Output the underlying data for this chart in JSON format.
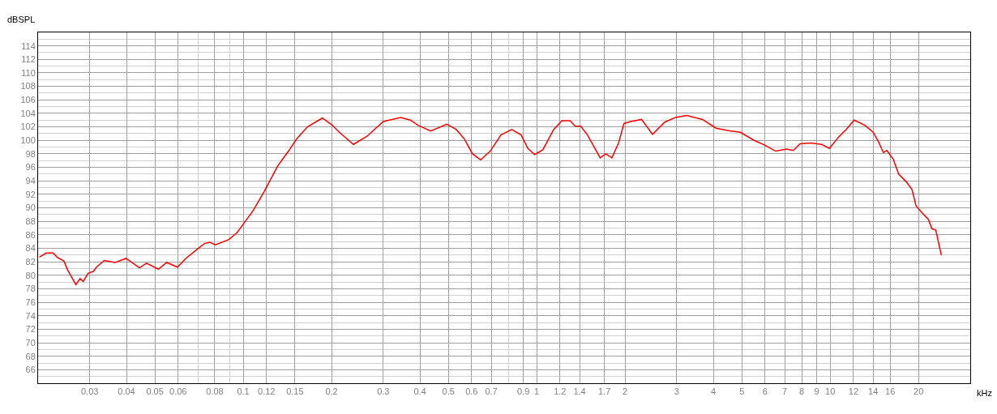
{
  "chart_data": {
    "type": "line",
    "xlabel": "kHz",
    "ylabel": "dBSPL",
    "log": "x",
    "grid": true,
    "marker": "none",
    "line_style": "solid",
    "xlim": [
      0.02,
      30
    ],
    "xticks": [
      0.03,
      0.04,
      0.05,
      0.06,
      0.08,
      0.1,
      0.12,
      0.15,
      0.2,
      0.3,
      0.4,
      0.5,
      0.6,
      0.7,
      0.9,
      1,
      1.2,
      1.4,
      1.7,
      2,
      3,
      4,
      5,
      6,
      7,
      8,
      9,
      10,
      12,
      14,
      16,
      20
    ],
    "ylim": [
      64,
      116
    ],
    "yticks": [
      66,
      68,
      70,
      72,
      74,
      76,
      78,
      80,
      82,
      84,
      86,
      88,
      90,
      92,
      94,
      96,
      98,
      100,
      102,
      104,
      106,
      108,
      110,
      112,
      114
    ],
    "series": [
      {
        "color": "#ff0000",
        "x": [
          0.0202,
          0.0213,
          0.0225,
          0.0232,
          0.0245,
          0.0252,
          0.0269,
          0.0278,
          0.0285,
          0.0296,
          0.0309,
          0.0316,
          0.0336,
          0.0366,
          0.0399,
          0.0443,
          0.0468,
          0.0514,
          0.0548,
          0.0597,
          0.0637,
          0.0708,
          0.0738,
          0.077,
          0.0804,
          0.0893,
          0.0952,
          0.1005,
          0.1081,
          0.1178,
          0.131,
          0.1426,
          0.152,
          0.1655,
          0.186,
          0.2003,
          0.2125,
          0.2373,
          0.264,
          0.3,
          0.344,
          0.371,
          0.395,
          0.435,
          0.494,
          0.532,
          0.567,
          0.604,
          0.644,
          0.694,
          0.755,
          0.822,
          0.885,
          0.933,
          0.984,
          1.049,
          1.142,
          1.218,
          1.298,
          1.353,
          1.412,
          1.489,
          1.57,
          1.645,
          1.717,
          1.803,
          1.9,
          1.983,
          2.09,
          2.275,
          2.48,
          2.73,
          2.97,
          3.24,
          3.67,
          4.08,
          4.54,
          4.94,
          5.5,
          5.98,
          6.52,
          7.1,
          7.48,
          7.89,
          8.59,
          9.35,
          9.93,
          10.63,
          11.32,
          12.07,
          13.15,
          14.0,
          14.6,
          15.17,
          15.6,
          16.4,
          17.1,
          18.2,
          19.0,
          19.6,
          20.5,
          21.6,
          22.2,
          22.9,
          23.9
        ],
        "values": [
          82.7,
          83.3,
          83.3,
          82.7,
          82.1,
          80.8,
          78.6,
          79.5,
          79.1,
          80.3,
          80.6,
          81.2,
          82.2,
          81.9,
          82.5,
          81.1,
          81.8,
          80.9,
          81.9,
          81.2,
          82.5,
          84.1,
          84.7,
          84.9,
          84.5,
          85.3,
          86.3,
          87.7,
          89.6,
          92.4,
          96.2,
          98.4,
          100.2,
          102.0,
          103.3,
          102.3,
          101.2,
          99.4,
          100.6,
          102.8,
          103.4,
          103.0,
          102.2,
          101.4,
          102.4,
          101.6,
          100.2,
          98.0,
          97.1,
          98.4,
          100.8,
          101.6,
          100.8,
          98.8,
          97.9,
          98.6,
          101.6,
          102.9,
          102.9,
          102.1,
          102.1,
          100.8,
          99.0,
          97.4,
          98.0,
          97.4,
          99.6,
          102.5,
          102.8,
          103.1,
          100.9,
          102.7,
          103.4,
          103.7,
          103.1,
          101.8,
          101.4,
          101.2,
          100.0,
          99.3,
          98.4,
          98.7,
          98.5,
          99.5,
          99.6,
          99.4,
          98.8,
          100.4,
          101.6,
          103.0,
          102.2,
          101.2,
          99.8,
          98.2,
          98.5,
          97.2,
          95.0,
          93.8,
          92.7,
          90.3,
          89.3,
          88.3,
          86.9,
          86.7,
          83.0
        ]
      }
    ]
  }
}
